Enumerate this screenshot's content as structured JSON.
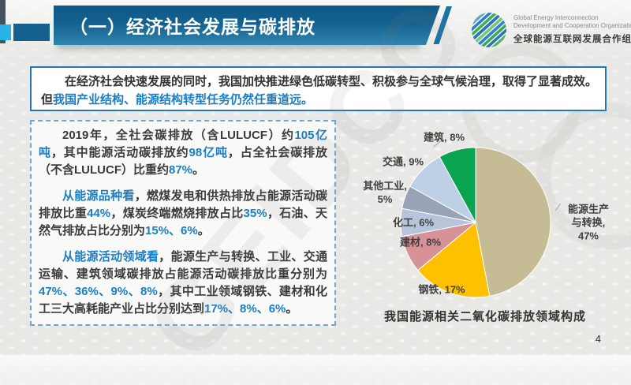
{
  "header": {
    "title": "（一）经济社会发展与碳排放",
    "logo": {
      "en_line1": "Global Energy Interconnection",
      "en_line2": "Development and Cooperation Organization",
      "cn_line": "全球能源互联网发展合作组织"
    }
  },
  "statement": {
    "line1": "在经济社会快速发展的同时，我国加快推进绿色低碳转型、积极参与全球气候治理，取得了显著成效。",
    "line2_prefix": "但",
    "line2_emphasis": "我国产业结构、能源结构转型任务仍然任重道远。"
  },
  "body": {
    "p1": [
      "2019年，全社会碳排放（含LULUCF）约",
      "105亿吨",
      "，其中能源活动碳排放约",
      "98亿吨",
      "，占全社会碳排放（不含LULUCF）比重约",
      "87%",
      "。"
    ],
    "p2": [
      "从能源品种看",
      "，燃煤发电和供热排放占能源活动碳排放比重",
      "44%",
      "，煤炭终端燃烧排放占比",
      "35%",
      "，石油、天然气排放占比分别为",
      "15%、6%",
      "。"
    ],
    "p3": [
      "从能源活动领域看",
      "，能源生产与转换、工业、交通运输、建筑领域碳排放占能源活动碳排放比重分别为",
      "47%、36%、9%、8%",
      "，其中工业领域钢铁、建材和化工三大高耗能产业占比分别达到",
      "17%、8%、6%",
      "。"
    ]
  },
  "chart_data": {
    "type": "pie",
    "title": "我国能源相关二氧化碳排放领域构成",
    "categories": [
      "能源生产与转换",
      "钢铁",
      "建材",
      "化工",
      "其他工业",
      "交通",
      "建筑"
    ],
    "values": [
      47,
      17,
      8,
      6,
      5,
      9,
      8
    ],
    "colors": [
      "#c5bc95",
      "#ffc000",
      "#d79297",
      "#b8c4da",
      "#98a4b6",
      "#bdd0e6",
      "#0aa350"
    ],
    "labels": [
      "能源生产\n与转换,\n47%",
      "钢铁, 17%",
      "建材, 8%",
      "化工, 6%",
      "其他工业,\n5%",
      "交通, 9%",
      "建筑, 8%"
    ],
    "start_angle_deg": 0,
    "direction": "clockwise",
    "legend": "none"
  },
  "footer": {
    "page_number": "4"
  },
  "watermark": "GEIDCO",
  "colors": {
    "accent_blue": "#1b7ec2",
    "header_bar_top": "#0d5a89",
    "header_bar_bottom": "#2f84b0",
    "statement_border": "#2776b8",
    "panel_border_dashed": "#6aa7d8"
  }
}
